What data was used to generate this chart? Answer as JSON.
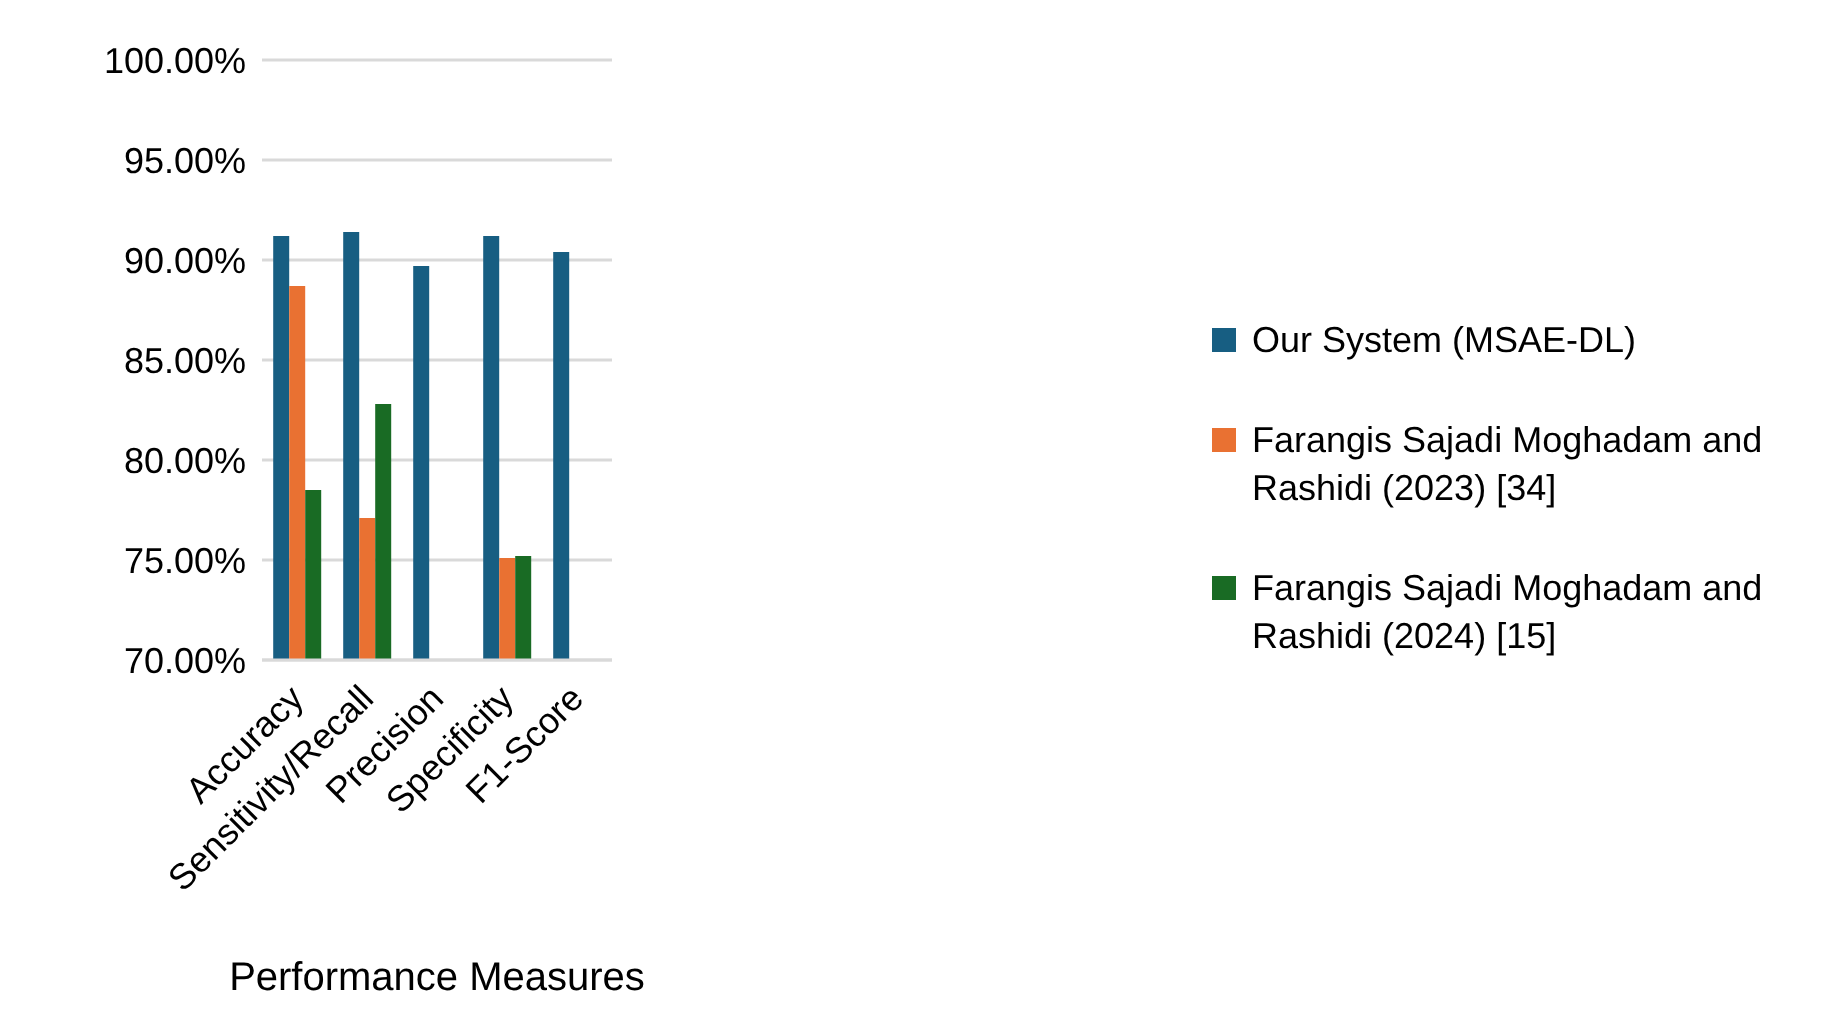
{
  "chart_data": {
    "type": "bar",
    "xlabel": "Performance Measures",
    "categories": [
      "Accuracy",
      "Sensitivity/Recall",
      "Precision",
      "Specificity",
      "F1-Score"
    ],
    "series": [
      {
        "name": "Our System (MSAE-DL)",
        "color": "#175e82",
        "values": [
          91.2,
          91.4,
          89.7,
          91.2,
          90.4
        ]
      },
      {
        "name": "Farangis Sajadi Moghadam and Rashidi (2023) [34]",
        "color": "#e97132",
        "values": [
          88.7,
          77.1,
          null,
          75.1,
          null
        ]
      },
      {
        "name": "Farangis Sajadi Moghadam and Rashidi (2024) [15]",
        "color": "#196b24",
        "values": [
          78.5,
          82.8,
          null,
          75.2,
          null
        ]
      }
    ],
    "ylim": [
      70,
      100
    ],
    "yticks": [
      {
        "value": 70,
        "label": "70.00%"
      },
      {
        "value": 75,
        "label": "75.00%"
      },
      {
        "value": 80,
        "label": "80.00%"
      },
      {
        "value": 85,
        "label": "85.00%"
      },
      {
        "value": 90,
        "label": "90.00%"
      },
      {
        "value": 95,
        "label": "95.00%"
      },
      {
        "value": 100,
        "label": "100.00%"
      }
    ],
    "grid": "y",
    "legend": "right"
  }
}
